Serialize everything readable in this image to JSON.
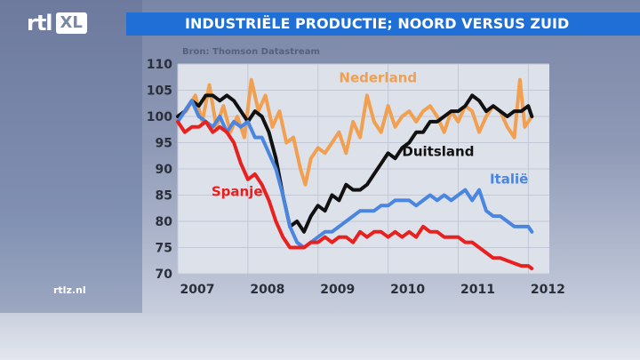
{
  "brand": {
    "logo_text": "rtl",
    "logo_badge": "XL",
    "site": "rtlz.nl"
  },
  "header": {
    "title": "INDUSTRIËLE PRODUCTIE; NOORD VERSUS ZUID"
  },
  "source_label": "Bron: Thomson Datastream",
  "colors": {
    "title_bar": "#1f6fd6"
  },
  "chart_data": {
    "type": "line",
    "title": "INDUSTRIËLE PRODUCTIE; NOORD VERSUS ZUID",
    "ylim": [
      70,
      110
    ],
    "xlim": [
      2007.0,
      2012.3
    ],
    "y_ticks": [
      110,
      105,
      100,
      95,
      90,
      85,
      80,
      75,
      70
    ],
    "x_ticks": [
      "2007",
      "2008",
      "2009",
      "2010",
      "2011",
      "2012"
    ],
    "grid": true,
    "series": [
      {
        "name": "Nederland",
        "color": "#f0a050",
        "label_at": [
          2009.3,
          106.5
        ],
        "x": [
          2007.0,
          2007.12,
          2007.25,
          2007.35,
          2007.45,
          2007.55,
          2007.65,
          2007.75,
          2007.85,
          2007.95,
          2008.05,
          2008.15,
          2008.25,
          2008.35,
          2008.45,
          2008.55,
          2008.65,
          2008.75,
          2008.82,
          2008.9,
          2009.0,
          2009.1,
          2009.2,
          2009.3,
          2009.4,
          2009.5,
          2009.6,
          2009.7,
          2009.8,
          2009.9,
          2010.0,
          2010.1,
          2010.2,
          2010.3,
          2010.4,
          2010.5,
          2010.6,
          2010.7,
          2010.8,
          2010.9,
          2011.0,
          2011.1,
          2011.2,
          2011.3,
          2011.4,
          2011.5,
          2011.6,
          2011.7,
          2011.8,
          2011.88,
          2011.95,
          2012.05
        ],
        "y": [
          100,
          101,
          104,
          99,
          106,
          98,
          102,
          97,
          100,
          96,
          107,
          101,
          104,
          98,
          101,
          95,
          96,
          90,
          87,
          92,
          94,
          93,
          95,
          97,
          93,
          99,
          96,
          104,
          99,
          97,
          102,
          98,
          100,
          101,
          99,
          101,
          102,
          100,
          97,
          101,
          99,
          102,
          101,
          97,
          100,
          102,
          101,
          98,
          96,
          107,
          98,
          100
        ]
      },
      {
        "name": "Duitsland",
        "color": "#111111",
        "label_at": [
          2010.2,
          92.5
        ],
        "x": [
          2007.0,
          2007.1,
          2007.2,
          2007.3,
          2007.4,
          2007.5,
          2007.6,
          2007.7,
          2007.8,
          2007.9,
          2008.0,
          2008.1,
          2008.2,
          2008.3,
          2008.4,
          2008.5,
          2008.6,
          2008.7,
          2008.8,
          2008.9,
          2009.0,
          2009.1,
          2009.2,
          2009.3,
          2009.4,
          2009.5,
          2009.6,
          2009.7,
          2009.8,
          2009.9,
          2010.0,
          2010.1,
          2010.2,
          2010.3,
          2010.4,
          2010.5,
          2010.6,
          2010.7,
          2010.8,
          2010.9,
          2011.0,
          2011.1,
          2011.2,
          2011.3,
          2011.4,
          2011.5,
          2011.6,
          2011.7,
          2011.8,
          2011.9,
          2012.0,
          2012.05
        ],
        "y": [
          100,
          101,
          103,
          102,
          104,
          104,
          103,
          104,
          103,
          101,
          99,
          101,
          100,
          97,
          92,
          85,
          79,
          80,
          78,
          81,
          83,
          82,
          85,
          84,
          87,
          86,
          86,
          87,
          89,
          91,
          93,
          92,
          94,
          95,
          97,
          97,
          99,
          99,
          100,
          101,
          101,
          102,
          104,
          103,
          101,
          102,
          101,
          100,
          101,
          101,
          102,
          100
        ]
      },
      {
        "name": "Italië",
        "color": "#4a86e0",
        "label_at": [
          2011.45,
          87.2
        ],
        "x": [
          2007.0,
          2007.1,
          2007.2,
          2007.3,
          2007.4,
          2007.5,
          2007.6,
          2007.7,
          2007.8,
          2007.9,
          2008.0,
          2008.1,
          2008.2,
          2008.3,
          2008.4,
          2008.5,
          2008.6,
          2008.7,
          2008.8,
          2008.9,
          2009.0,
          2009.1,
          2009.2,
          2009.3,
          2009.4,
          2009.5,
          2009.6,
          2009.7,
          2009.8,
          2009.9,
          2010.0,
          2010.1,
          2010.2,
          2010.3,
          2010.4,
          2010.5,
          2010.6,
          2010.7,
          2010.8,
          2010.9,
          2011.0,
          2011.1,
          2011.2,
          2011.3,
          2011.4,
          2011.5,
          2011.6,
          2011.7,
          2011.8,
          2011.9,
          2012.0,
          2012.05
        ],
        "y": [
          99,
          101,
          103,
          100,
          99,
          98,
          100,
          97,
          99,
          98,
          99,
          96,
          96,
          93,
          90,
          85,
          79,
          76,
          75,
          76,
          77,
          78,
          78,
          79,
          80,
          81,
          82,
          82,
          82,
          83,
          83,
          84,
          84,
          84,
          83,
          84,
          85,
          84,
          85,
          84,
          85,
          86,
          84,
          86,
          82,
          81,
          81,
          80,
          79,
          79,
          79,
          78
        ]
      },
      {
        "name": "Spanje",
        "color": "#e8201e",
        "label_at": [
          2007.48,
          84.8
        ],
        "x": [
          2007.0,
          2007.1,
          2007.2,
          2007.3,
          2007.4,
          2007.5,
          2007.6,
          2007.7,
          2007.8,
          2007.9,
          2008.0,
          2008.1,
          2008.2,
          2008.3,
          2008.4,
          2008.5,
          2008.6,
          2008.7,
          2008.8,
          2008.9,
          2009.0,
          2009.1,
          2009.2,
          2009.3,
          2009.4,
          2009.5,
          2009.6,
          2009.7,
          2009.8,
          2009.9,
          2010.0,
          2010.1,
          2010.2,
          2010.3,
          2010.4,
          2010.5,
          2010.6,
          2010.7,
          2010.8,
          2010.9,
          2011.0,
          2011.1,
          2011.2,
          2011.3,
          2011.4,
          2011.5,
          2011.6,
          2011.7,
          2011.8,
          2011.9,
          2012.0,
          2012.05
        ],
        "y": [
          99,
          97,
          98,
          98,
          99,
          97,
          98,
          97,
          95,
          91,
          88,
          89,
          87,
          84,
          80,
          77,
          75,
          75,
          75,
          76,
          76,
          77,
          76,
          77,
          77,
          76,
          78,
          77,
          78,
          78,
          77,
          78,
          77,
          78,
          77,
          79,
          78,
          78,
          77,
          77,
          77,
          76,
          76,
          75,
          74,
          73,
          73,
          72.5,
          72,
          71.5,
          71.5,
          71
        ]
      }
    ]
  }
}
